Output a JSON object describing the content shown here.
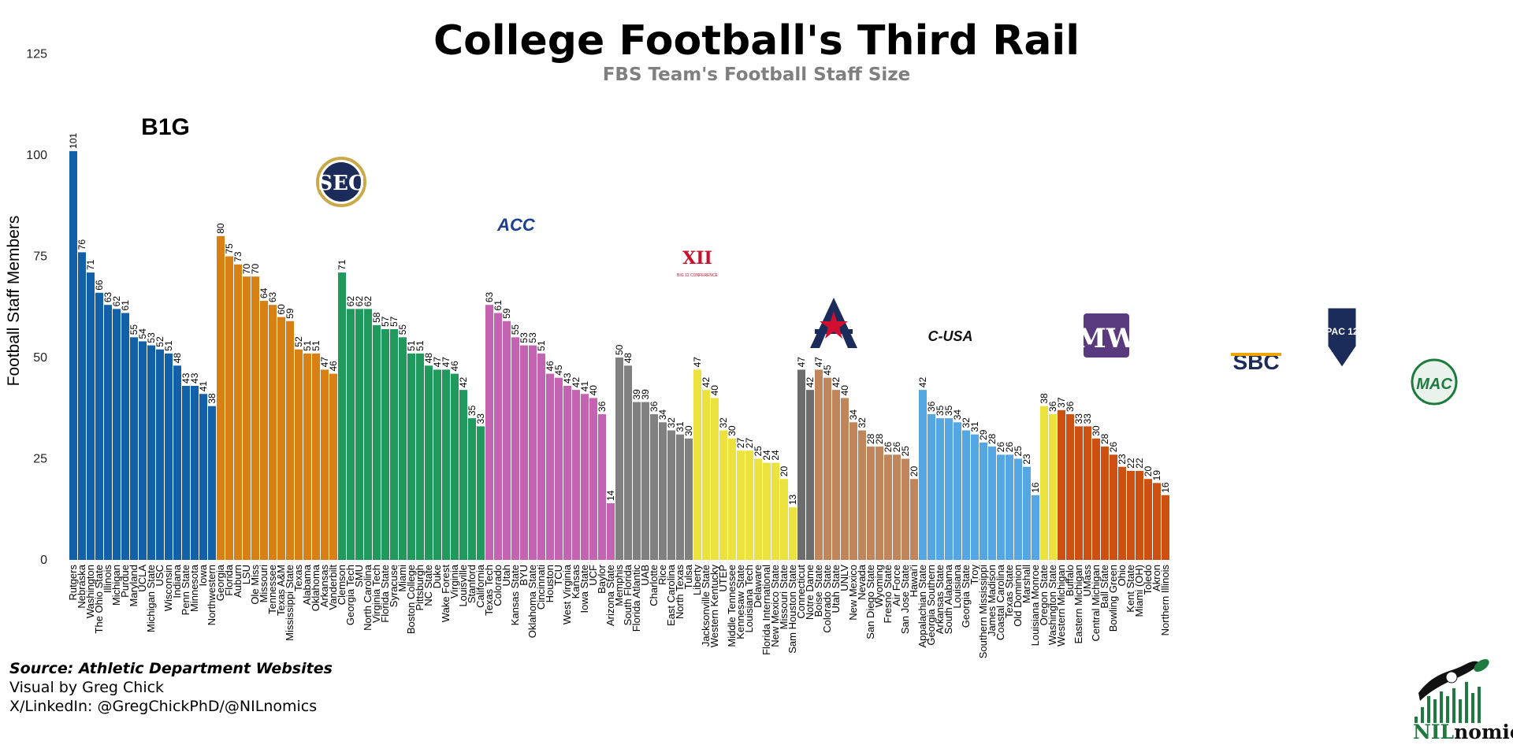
{
  "title": "College Football's Third Rail",
  "subtitle": "FBS Team's Football Staff Size",
  "footer": {
    "source": "Source: Athletic Department Websites",
    "visual": "Visual by Greg Chick",
    "social": "X/LinkedIn: @GregChickPhD/@NILnomics"
  },
  "branding": {
    "nil": "NIL",
    "nomics": "nomic$"
  },
  "chart_data": {
    "type": "bar",
    "title": "College Football's Third Rail",
    "subtitle": "FBS Team's Football Staff Size",
    "ylabel": "Football Staff Members",
    "xlabel": "",
    "ylim": [
      0,
      125
    ],
    "yticks": [
      0,
      25,
      50,
      75,
      100,
      125
    ],
    "grid": false,
    "legend": "none",
    "data_labels": true,
    "series": [
      {
        "conference": "Big Ten",
        "logo_text": "B1G",
        "color": "#1160a8",
        "categories": [
          "Rutgers",
          "Nebraska",
          "Washington",
          "The Ohio State",
          "Illinois",
          "Michigan",
          "Purdue",
          "Maryland",
          "UCLA",
          "Michigan State",
          "USC",
          "Wisconsin",
          "Indiana",
          "Penn State",
          "Minnesota",
          "Iowa",
          "Northwestern"
        ],
        "values": [
          101,
          76,
          71,
          66,
          63,
          62,
          61,
          55,
          54,
          53,
          52,
          51,
          48,
          43,
          43,
          41,
          38
        ]
      },
      {
        "conference": "SEC",
        "logo_text": "SEC",
        "color": "#d98015",
        "categories": [
          "Georgia",
          "Florida",
          "Auburn",
          "LSU",
          "Ole Miss",
          "Missouri",
          "Tennessee",
          "Texas A&M",
          "Mississippi State",
          "Texas",
          "Alabama",
          "Oklahoma",
          "Arkansas",
          "Vanderbilt"
        ],
        "values": [
          80,
          75,
          73,
          70,
          70,
          64,
          63,
          60,
          59,
          52,
          51,
          51,
          47,
          46
        ]
      },
      {
        "conference": "ACC",
        "logo_text": "ACC",
        "color": "#1f9a5c",
        "categories": [
          "Clemson",
          "Georgia Tech",
          "SMU",
          "North Carolina",
          "Virginia Tech",
          "Florida State",
          "Syracuse",
          "Miami",
          "Boston College",
          "Pittsburgh",
          "NC State",
          "Duke",
          "Wake Forest",
          "Virginia",
          "Louisville",
          "Stanford",
          "California"
        ],
        "values": [
          71,
          62,
          62,
          62,
          58,
          57,
          57,
          55,
          51,
          51,
          48,
          47,
          47,
          46,
          42,
          35,
          33
        ]
      },
      {
        "conference": "Big 12",
        "logo_text": "XII",
        "logo_sub": "BIG 12 CONFERENCE",
        "color": "#c563b3",
        "categories": [
          "Texas Tech",
          "Colorado",
          "Utah",
          "Kansas State",
          "BYU",
          "Oklahoma State",
          "Cincinnati",
          "Houston",
          "TCU",
          "West Virginia",
          "Kansas",
          "Iowa State",
          "UCF",
          "Baylor",
          "Arizona State"
        ],
        "values": [
          63,
          61,
          59,
          55,
          53,
          53,
          51,
          46,
          45,
          43,
          42,
          41,
          40,
          36,
          14
        ]
      },
      {
        "conference": "American",
        "logo_text": "A",
        "color": "#808080",
        "categories": [
          "Memphis",
          "South Florida",
          "Florida Atlantic",
          "UAB",
          "Charlotte",
          "Rice",
          "East Carolina",
          "North Texas",
          "Tulsa"
        ],
        "values": [
          50,
          48,
          39,
          39,
          36,
          34,
          32,
          31,
          30
        ]
      },
      {
        "conference": "Conference USA",
        "logo_text": "C-USA",
        "color": "#ebe23d",
        "categories": [
          "Liberty",
          "Jacksonville State",
          "Western Kentucky",
          "UTEP",
          "Middle Tennessee",
          "Kennesaw State",
          "Louisiana Tech",
          "Delaware",
          "Florida International",
          "New Mexico State",
          "Missouri State",
          "Sam Houston State"
        ],
        "values": [
          47,
          42,
          40,
          32,
          30,
          27,
          27,
          25,
          24,
          24,
          20,
          13
        ]
      },
      {
        "conference": "Independent",
        "color": "#6d6d6d",
        "categories": [
          "Connecticut",
          "Notre Dame"
        ],
        "values": [
          47,
          42
        ]
      },
      {
        "conference": "Mountain West",
        "logo_text": "MW",
        "color": "#c1855b",
        "categories": [
          "Boise State",
          "Colorado State",
          "Utah State",
          "UNLV",
          "New Mexico",
          "Nevada",
          "San Diego State",
          "Wyoming",
          "Fresno State",
          "Air Force",
          "San Jose State",
          "Hawai'i"
        ],
        "values": [
          47,
          45,
          42,
          40,
          34,
          32,
          28,
          28,
          26,
          26,
          25,
          20
        ]
      },
      {
        "conference": "Sun Belt",
        "logo_text": "SBC",
        "color": "#54a7e3",
        "categories": [
          "Appalachian State",
          "Georgia Southern",
          "Arkansas State",
          "South Alabama",
          "Louisiana",
          "Georgia State",
          "Troy",
          "Southern Mississippi",
          "James Madison",
          "Coastal Carolina",
          "Texas State",
          "Old Dominion",
          "Marshall",
          "Louisiana Monroe"
        ],
        "values": [
          42,
          36,
          35,
          35,
          34,
          32,
          31,
          29,
          28,
          26,
          26,
          25,
          23,
          16
        ]
      },
      {
        "conference": "Pac-12",
        "logo_text": "PAC 12",
        "color": "#ebe23d",
        "categories": [
          "Oregon State",
          "Washington State"
        ],
        "values": [
          38,
          36
        ]
      },
      {
        "conference": "MAC",
        "logo_text": "MAC",
        "color": "#cd5010",
        "categories": [
          "Western Michigan",
          "Buffalo",
          "Eastern Michigan",
          "UMass",
          "Central Michigan",
          "Ball State",
          "Bowling Green",
          "Ohio",
          "Kent State",
          "Miami (OH)",
          "Toledo",
          "Akron",
          "Northern Illinois"
        ],
        "values": [
          37,
          36,
          33,
          33,
          30,
          28,
          26,
          23,
          22,
          22,
          20,
          19,
          16
        ]
      }
    ]
  }
}
